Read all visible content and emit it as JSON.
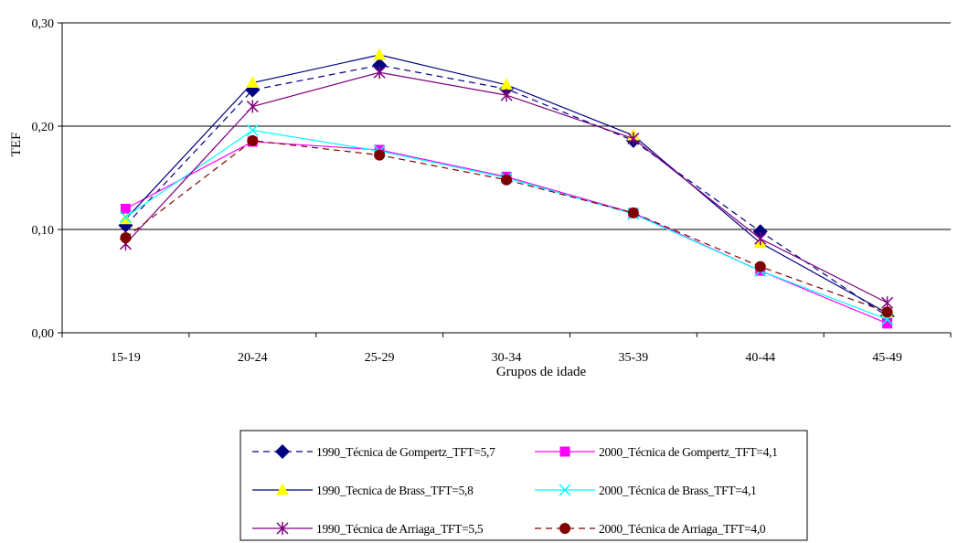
{
  "chart_data": {
    "type": "line",
    "title": "",
    "xlabel": "Grupos de idade",
    "ylabel": "TEF",
    "categories": [
      "15-19",
      "20-24",
      "25-29",
      "30-34",
      "35-39",
      "40-44",
      "45-49"
    ],
    "y_ticks": [
      "0,00",
      "0,10",
      "0,20",
      "0,30"
    ],
    "ylim": [
      0,
      0.3
    ],
    "grid": "horizontal",
    "legend_position": "bottom",
    "series": [
      {
        "name": "1990_Técnica de Gompertz_TFT=5,7",
        "color": "#000080",
        "marker": "diamond",
        "line": "dashed",
        "values": [
          0.104,
          0.235,
          0.259,
          0.236,
          0.186,
          0.098,
          0.016
        ]
      },
      {
        "name": "2000_Técnica de Gompertz_TFT=4,1",
        "color": "#FF00FF",
        "marker": "square",
        "line": "solid",
        "values": [
          0.12,
          0.185,
          0.177,
          0.151,
          0.116,
          0.06,
          0.009
        ]
      },
      {
        "name": "1990_Tecnica de Brass_TFT=5,8",
        "color": "#FFFF00",
        "line_color": "#000080",
        "marker": "triangle",
        "line": "solid",
        "values": [
          0.11,
          0.242,
          0.269,
          0.24,
          0.191,
          0.087,
          0.019
        ]
      },
      {
        "name": "2000_Técnica de Brass_TFT=4,1",
        "color": "#00FFFF",
        "marker": "x",
        "line": "solid",
        "values": [
          0.112,
          0.196,
          0.176,
          0.15,
          0.115,
          0.06,
          0.013
        ]
      },
      {
        "name": "1990_Técnica de Arriaga_TFT=5,5",
        "color": "#800080",
        "marker": "star",
        "line": "solid",
        "values": [
          0.086,
          0.219,
          0.252,
          0.23,
          0.188,
          0.091,
          0.029
        ]
      },
      {
        "name": "2000_Técnica de Arriaga_TFT=4,0",
        "color": "#800000",
        "marker": "circle",
        "line": "dashed",
        "values": [
          0.092,
          0.186,
          0.172,
          0.148,
          0.116,
          0.064,
          0.02
        ]
      }
    ]
  }
}
